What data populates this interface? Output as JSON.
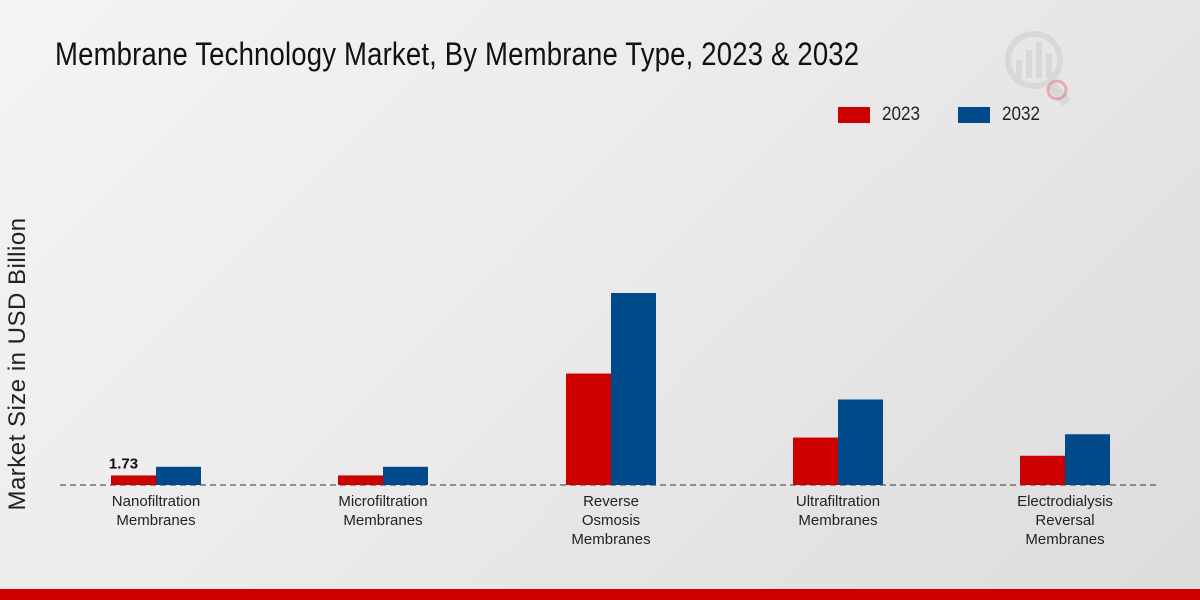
{
  "title": "Membrane Technology Market, By Membrane Type, 2023 & 2032",
  "colors": {
    "series_2023": "#cc0000",
    "series_2032": "#004a8c",
    "footer": "#cc0000"
  },
  "chart_data": {
    "type": "bar",
    "title": "Membrane Technology Market, By Membrane Type, 2023 & 2032",
    "xlabel": "",
    "ylabel": "Market Size in USD Billion",
    "categories": [
      [
        "Nanofiltration",
        "Membranes"
      ],
      [
        "Microfiltration",
        "Membranes"
      ],
      [
        "Reverse",
        "Osmosis",
        "Membranes"
      ],
      [
        "Ultrafiltration",
        "Membranes"
      ],
      [
        "Electrodialysis",
        "Reversal",
        "Membranes"
      ]
    ],
    "series": [
      {
        "name": "2023",
        "values": [
          1.73,
          1.73,
          20.2,
          8.6,
          5.3
        ]
      },
      {
        "name": "2032",
        "values": [
          3.3,
          3.3,
          34.8,
          15.5,
          9.2
        ]
      }
    ],
    "data_labels": [
      {
        "series": 0,
        "index": 0,
        "text": "1.73"
      }
    ],
    "ylim": [
      0,
      40
    ],
    "grid": false,
    "legend_position": "top-right",
    "baseline": "dashed"
  }
}
